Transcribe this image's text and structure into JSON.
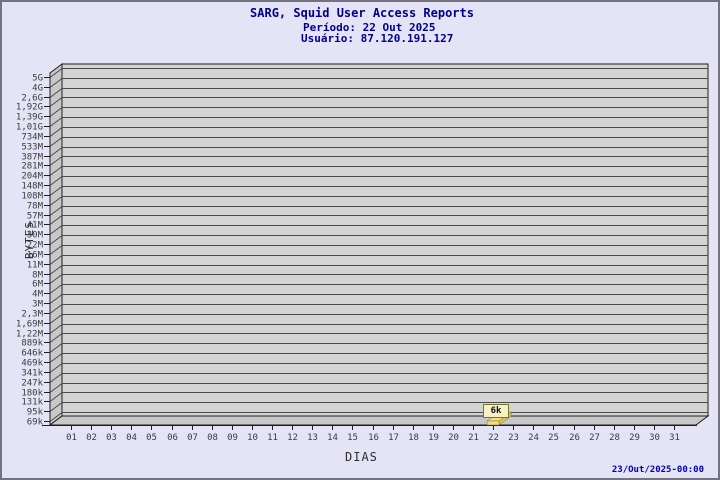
{
  "header": {
    "title": "SARG, Squid User Access Reports",
    "period": "Período: 22 Out 2025",
    "user": "Usuário: 87.120.191.127"
  },
  "footer": {
    "generated": "23/Out/2025-00:00"
  },
  "chart_data": {
    "type": "bar",
    "title": "SARG, Squid User Access Reports",
    "subtitle": [
      "Período: 22 Out 2025",
      "Usuário: 87.120.191.127"
    ],
    "xlabel": "DIAS",
    "ylabel": "BYTES",
    "y_scale": "log",
    "grid": true,
    "x_tick_labels": [
      "01",
      "02",
      "03",
      "04",
      "05",
      "06",
      "07",
      "08",
      "09",
      "10",
      "11",
      "12",
      "13",
      "14",
      "15",
      "16",
      "17",
      "18",
      "19",
      "20",
      "21",
      "22",
      "23",
      "24",
      "25",
      "26",
      "27",
      "28",
      "29",
      "30",
      "31"
    ],
    "y_tick_labels": [
      "5G",
      "4G",
      "2,6G",
      "1,92G",
      "1,39G",
      "1,01G",
      "734M",
      "533M",
      "387M",
      "281M",
      "204M",
      "148M",
      "108M",
      "78M",
      "57M",
      "41M",
      "30M",
      "22M",
      "16M",
      "11M",
      "8M",
      "6M",
      "4M",
      "3M",
      "2,3M",
      "1,69M",
      "1,22M",
      "889k",
      "646k",
      "469k",
      "341k",
      "247k",
      "180k",
      "131k",
      "95k",
      "69k"
    ],
    "series": [
      {
        "name": "bytes_per_day",
        "points": [
          {
            "x": "22",
            "y_bytes": 6000,
            "label": "6k"
          }
        ]
      }
    ]
  },
  "colors": {
    "page_bg": "#e4e4f6",
    "page_border": "#73737f",
    "title_text": "#00008b",
    "plot_bg": "#d4d4d4",
    "face_fill": "#c8c8c8",
    "grid_line": "#4a4a4a",
    "axis_line": "#1e1e1e",
    "tick_text": "#3c3c3c",
    "axis_title_text": "#2e2e2e",
    "bar_fill": "#f2df85",
    "bar_side": "#d8c15e",
    "tooltip_bg": "#f6f2c5",
    "tooltip_border": "#76762c",
    "tooltip_text": "#111111",
    "footer_text": "#0000b8"
  }
}
